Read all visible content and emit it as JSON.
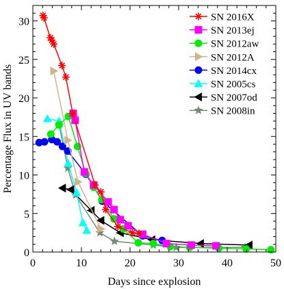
{
  "chart_data": {
    "type": "line",
    "title": "",
    "xlabel": "Days since explosion",
    "ylabel": "Percentage Flux in UV bands",
    "xlim": [
      0,
      50
    ],
    "ylim": [
      0,
      32
    ],
    "xticks": [
      0,
      10,
      20,
      30,
      40,
      50
    ],
    "yticks": [
      0,
      5,
      10,
      15,
      20,
      25,
      30
    ],
    "grid": false,
    "legend_position": "top-right",
    "series": [
      {
        "name": "SN 2016X",
        "color": "#ff0000",
        "marker": "asterisk",
        "x": [
          2.1,
          2.3,
          3.6,
          3.9,
          4.3,
          6.0,
          6.8,
          8.2,
          12.8,
          14.0,
          15.0,
          17.5,
          20.5,
          21.8
        ],
        "y": [
          30.7,
          30.4,
          27.8,
          27.5,
          27.0,
          24.2,
          22.7,
          18.0,
          8.7,
          7.8,
          5.5,
          3.3,
          2.5,
          2.4
        ]
      },
      {
        "name": "SN 2013ej",
        "color": "#ff00ff",
        "marker": "square",
        "x": [
          8.3,
          8.7,
          10.6,
          12.5,
          15.5,
          16.7,
          18.0,
          19.6,
          22.6,
          27.5,
          32.6,
          37.7
        ],
        "y": [
          18.0,
          17.1,
          10.4,
          8.7,
          6.5,
          5.5,
          4.2,
          3.4,
          2.3,
          1.1,
          0.9,
          0.8
        ]
      },
      {
        "name": "SN 2012aw",
        "color": "#00ee00",
        "marker": "circle",
        "x": [
          3.7,
          5.4,
          7.3,
          9.2,
          10.9,
          12.5,
          14.2,
          16.7,
          18.6,
          21.7,
          24.8,
          28.3,
          32.3,
          38.3,
          43.9,
          49.0
        ],
        "y": [
          15.3,
          16.5,
          17.6,
          13.7,
          10.2,
          8.4,
          6.8,
          4.3,
          3.0,
          1.2,
          1.1,
          0.7,
          0.6,
          0.5,
          0.4,
          0.3
        ]
      },
      {
        "name": "SN 2012A",
        "color": "#d2b48c",
        "marker": "triangle-right",
        "x": [
          4.3,
          7.2,
          9.3,
          14.0
        ],
        "y": [
          23.5,
          14.5,
          9.1,
          3.0
        ]
      },
      {
        "name": "SN 2014cx",
        "color": "#0000ff",
        "marker": "circle",
        "x": [
          1.3,
          2.4,
          3.9,
          5.0,
          6.1,
          7.2,
          10.9,
          14.3,
          22.6,
          26.6
        ],
        "y": [
          14.2,
          14.3,
          14.6,
          14.3,
          13.7,
          13.1,
          10.1,
          6.6,
          2.1,
          1.5
        ]
      },
      {
        "name": "SN 2005cs",
        "color": "#00ffff",
        "marker": "triangle-up",
        "x": [
          3.0,
          5.4,
          7.3,
          9.0,
          10.3,
          11.1
        ],
        "y": [
          17.3,
          17.0,
          11.5,
          7.7,
          3.8,
          2.8
        ]
      },
      {
        "name": "SN 2007od",
        "color": "#000000",
        "marker": "triangle-left",
        "x": [
          6.1,
          7.8,
          12.0,
          14.0,
          18.0,
          24.5,
          34.5,
          44.5
        ],
        "y": [
          8.3,
          8.1,
          5.4,
          4.1,
          2.5,
          1.6,
          1.1,
          0.9
        ]
      },
      {
        "name": "SN 2008in",
        "color": "#778877",
        "marker": "star",
        "x": [
          5.4,
          7.2,
          8.8,
          13.8,
          16.8,
          24.8,
          29.5,
          43.7
        ],
        "y": [
          16.5,
          10.9,
          7.4,
          2.5,
          1.4,
          0.9,
          0.6,
          0.6
        ]
      }
    ]
  }
}
